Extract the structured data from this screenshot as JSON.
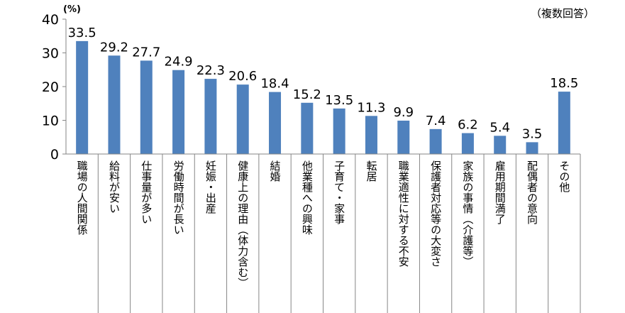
{
  "chart_data": {
    "type": "bar",
    "unit_label": "(%)",
    "note": "（複数回答）",
    "categories": [
      "職場の人間関係",
      "給料が安い",
      "仕事量が多い",
      "労働時間が長い",
      "妊娠・出産",
      "健康上の理由（体力含む）",
      "結婚",
      "他業種への興味",
      "子育て・家事",
      "転居",
      "職業適性に対する不安",
      "保護者対応等の大変さ",
      "家族の事情（介護等）",
      "雇用期間満了",
      "配偶者の意向",
      "その他"
    ],
    "values": [
      33.5,
      29.2,
      27.7,
      24.9,
      22.3,
      20.6,
      18.4,
      15.2,
      13.5,
      11.3,
      9.9,
      7.4,
      6.2,
      5.4,
      3.5,
      18.5
    ],
    "value_labels": [
      "33.5",
      "29.2",
      "27.7",
      "24.9",
      "22.3",
      "20.6",
      "18.4",
      "15.2",
      "13.5",
      "11.3",
      "9.9",
      "7.4",
      "6.2",
      "5.4",
      "3.5",
      "18.5"
    ],
    "ylim": [
      0,
      40
    ],
    "yticks": [
      "0",
      "10",
      "20",
      "30",
      "40"
    ],
    "bar_color": "#4f81bd",
    "grid": false,
    "legend": "none"
  }
}
